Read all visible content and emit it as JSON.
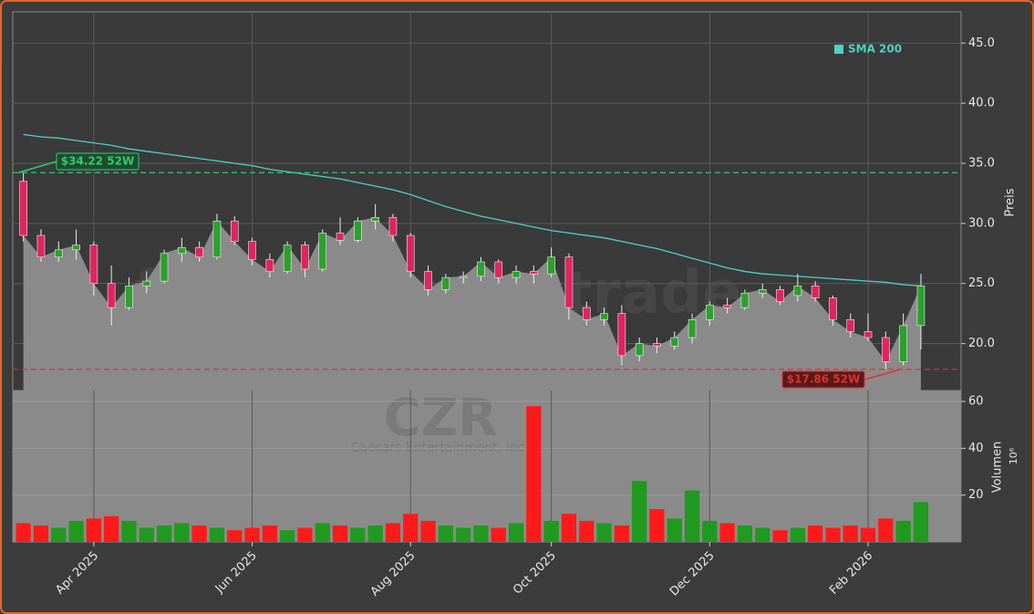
{
  "chart_data": [
    {
      "type": "candlestick",
      "watermark": "forexsignale.trade",
      "symbol": "CZR",
      "company": "Caesars Entertainment, Inc",
      "y_label": "Preis",
      "up_color": "#2ca02c",
      "down_color": "#e0245e",
      "area_color": "#8a8a8a",
      "ylim": [
        16.1,
        47.6
      ],
      "yticks": [
        {
          "value": 20,
          "label": "20.0"
        },
        {
          "value": 25,
          "label": "25.0"
        },
        {
          "value": 30,
          "label": "30.0"
        },
        {
          "value": 35,
          "label": "35.0"
        },
        {
          "value": 40,
          "label": "40.0"
        },
        {
          "value": 45,
          "label": "45.0"
        }
      ],
      "grid": true,
      "open": [
        33.5,
        29,
        27.2,
        27.8,
        28.2,
        25,
        23,
        24.8,
        25.2,
        27.5,
        28,
        27.2,
        30.2,
        28.5,
        27,
        26,
        28.2,
        26.2,
        29.2,
        28.6,
        30.2,
        30.5,
        29,
        26,
        24.5,
        25.5,
        25.6,
        26.8,
        25.5,
        26,
        25.8,
        27.2,
        23,
        22,
        22.5,
        19,
        20,
        19.8,
        20.5,
        22,
        23.2,
        23,
        24.2,
        24.5,
        24,
        24.8,
        23.8,
        22,
        21,
        20.5,
        18.5,
        21.5
      ],
      "high": [
        34.22,
        29.5,
        28.5,
        29.5,
        28.5,
        26.5,
        25.5,
        26,
        27.8,
        28.8,
        28.5,
        30.8,
        30.6,
        28.8,
        27.5,
        28.5,
        28.5,
        29.5,
        30.5,
        30.5,
        31.6,
        30.8,
        29.2,
        26.5,
        25.8,
        26,
        27.2,
        27,
        26.5,
        26.5,
        28,
        27.5,
        23.5,
        23,
        23.2,
        20.5,
        20.5,
        21,
        22.5,
        23.5,
        23.8,
        24.5,
        25,
        24.8,
        25.8,
        25.2,
        24,
        22.5,
        22.5,
        21,
        22.5,
        25.8
      ],
      "low": [
        28.5,
        26.8,
        26.8,
        27,
        24,
        21.5,
        22.8,
        24.2,
        25,
        26.8,
        26.8,
        27,
        28.2,
        26.5,
        25.5,
        25.8,
        25.5,
        26,
        28.2,
        28.4,
        29.5,
        28.5,
        25.5,
        24,
        24.2,
        25,
        25.2,
        25,
        25,
        25,
        25.5,
        22,
        21.5,
        21.5,
        18.2,
        18.5,
        19.2,
        19.5,
        20,
        21.5,
        22.5,
        22.8,
        23.8,
        23.2,
        23.5,
        23.5,
        21.5,
        20.5,
        20.2,
        17.86,
        18.2,
        19.5
      ],
      "close": [
        29,
        27.2,
        27.8,
        28.2,
        25,
        23,
        24.8,
        25.2,
        27.5,
        28,
        27.2,
        30.2,
        28.5,
        27,
        26,
        28.2,
        26.2,
        29.2,
        28.6,
        30.2,
        30.5,
        29,
        26,
        24.5,
        25.5,
        25.6,
        26.8,
        25.5,
        26,
        25.8,
        27.2,
        23,
        22,
        22.5,
        19,
        20,
        19.8,
        20.5,
        22,
        23.2,
        23,
        24.2,
        24.5,
        23.5,
        24.8,
        23.8,
        22,
        21,
        20.5,
        18.5,
        21.5,
        24.8
      ],
      "sma": {
        "name": "SMA 200",
        "color": "#4fd1c5",
        "values": [
          37.4,
          37.2,
          37.1,
          36.9,
          36.7,
          36.5,
          36.2,
          36,
          35.8,
          35.6,
          35.4,
          35.2,
          35,
          34.8,
          34.5,
          34.3,
          34.1,
          33.9,
          33.7,
          33.4,
          33.1,
          32.8,
          32.4,
          31.9,
          31.4,
          31,
          30.6,
          30.3,
          30,
          29.7,
          29.4,
          29.2,
          29,
          28.8,
          28.5,
          28.2,
          27.9,
          27.5,
          27.1,
          26.7,
          26.3,
          26,
          25.8,
          25.7,
          25.6,
          25.5,
          25.4,
          25.3,
          25.2,
          25.1,
          24.9,
          24.8
        ]
      },
      "annotations": [
        {
          "value": 34.22,
          "label": "$34.22 52W",
          "color": "#2ecc71"
        },
        {
          "value": 17.86,
          "label": "$17.86 52W",
          "color": "#e03030"
        }
      ]
    },
    {
      "type": "bar",
      "y_label": "Volumen",
      "y_unit": "10⁶",
      "categories": [
        null,
        null,
        null,
        null,
        "Apr 2025",
        null,
        null,
        null,
        null,
        null,
        null,
        null,
        null,
        "Jun 2025",
        null,
        null,
        null,
        null,
        null,
        null,
        null,
        null,
        "Aug 2025",
        null,
        null,
        null,
        null,
        null,
        null,
        null,
        "Oct 2025",
        null,
        null,
        null,
        null,
        null,
        null,
        null,
        null,
        "Dec 2025",
        null,
        null,
        null,
        null,
        null,
        null,
        null,
        null,
        "Feb 2026",
        null,
        null,
        null
      ],
      "values": [
        8,
        7,
        6,
        9,
        10,
        11,
        9,
        6,
        7,
        8,
        7,
        6,
        5,
        6,
        7,
        5,
        6,
        8,
        7,
        6,
        7,
        8,
        12,
        9,
        7,
        6,
        7,
        6,
        8,
        58,
        9,
        12,
        9,
        8,
        7,
        26,
        14,
        10,
        22,
        9,
        8,
        7,
        6,
        5,
        6,
        7,
        6,
        7,
        6,
        10,
        9,
        17
      ],
      "ylim": [
        0,
        64.7
      ],
      "yticks": [
        20,
        40,
        60
      ],
      "grid": true
    }
  ]
}
